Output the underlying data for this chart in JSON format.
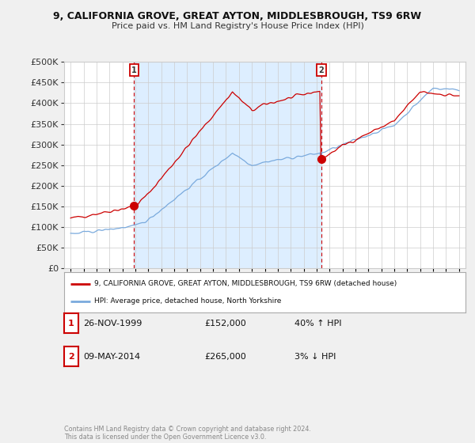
{
  "title": "9, CALIFORNIA GROVE, GREAT AYTON, MIDDLESBROUGH, TS9 6RW",
  "subtitle": "Price paid vs. HM Land Registry's House Price Index (HPI)",
  "legend_entry1": "9, CALIFORNIA GROVE, GREAT AYTON, MIDDLESBROUGH, TS9 6RW (detached house)",
  "legend_entry2": "HPI: Average price, detached house, North Yorkshire",
  "sale1_label": "1",
  "sale1_date": "26-NOV-1999",
  "sale1_price": "£152,000",
  "sale1_hpi": "40% ↑ HPI",
  "sale1_year": 1999.9,
  "sale1_value": 152000,
  "sale2_label": "2",
  "sale2_date": "09-MAY-2014",
  "sale2_price": "£265,000",
  "sale2_hpi": "3% ↓ HPI",
  "sale2_year": 2014.37,
  "sale2_value": 265000,
  "footer": "Contains HM Land Registry data © Crown copyright and database right 2024.\nThis data is licensed under the Open Government Licence v3.0.",
  "line_color_red": "#cc0000",
  "line_color_blue": "#7aaadd",
  "shade_color": "#ddeeff",
  "marker_box_color": "#cc0000",
  "background_color": "#f0f0f0",
  "plot_bg_color": "#ffffff",
  "grid_color": "#cccccc",
  "ylim": [
    0,
    500000
  ],
  "xlim": [
    1994.5,
    2025.5
  ],
  "ytick_fontsize": 8,
  "xtick_fontsize": 6.5,
  "title_fontsize": 9,
  "subtitle_fontsize": 8
}
